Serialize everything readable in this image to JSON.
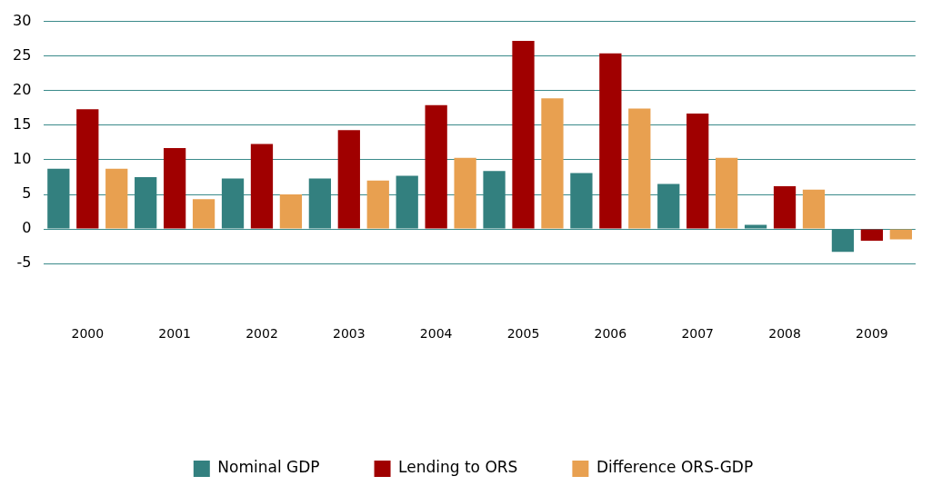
{
  "chart_data": {
    "type": "bar",
    "categories": [
      "2000",
      "2001",
      "2002",
      "2003",
      "2004",
      "2005",
      "2006",
      "2007",
      "2008",
      "2009"
    ],
    "series": [
      {
        "name": "Nominal GDP",
        "color": "#33807f",
        "values": [
          8.7,
          7.5,
          7.3,
          7.3,
          7.7,
          8.4,
          8.1,
          6.5,
          0.6,
          -3.3
        ]
      },
      {
        "name": "Lending to ORS",
        "color": "#a00000",
        "values": [
          17.3,
          11.7,
          12.3,
          14.3,
          17.9,
          27.2,
          25.4,
          16.7,
          6.2,
          -1.7
        ]
      },
      {
        "name": "Difference ORS-GDP",
        "color": "#e8a050",
        "values": [
          8.7,
          4.3,
          5.0,
          7.0,
          10.3,
          18.9,
          17.4,
          10.3,
          5.7,
          -1.5
        ]
      }
    ],
    "ylim": [
      -5,
      30
    ],
    "yticks": [
      -5,
      0,
      5,
      10,
      15,
      20,
      25,
      30
    ],
    "grid": "y",
    "legend": "bottom"
  }
}
